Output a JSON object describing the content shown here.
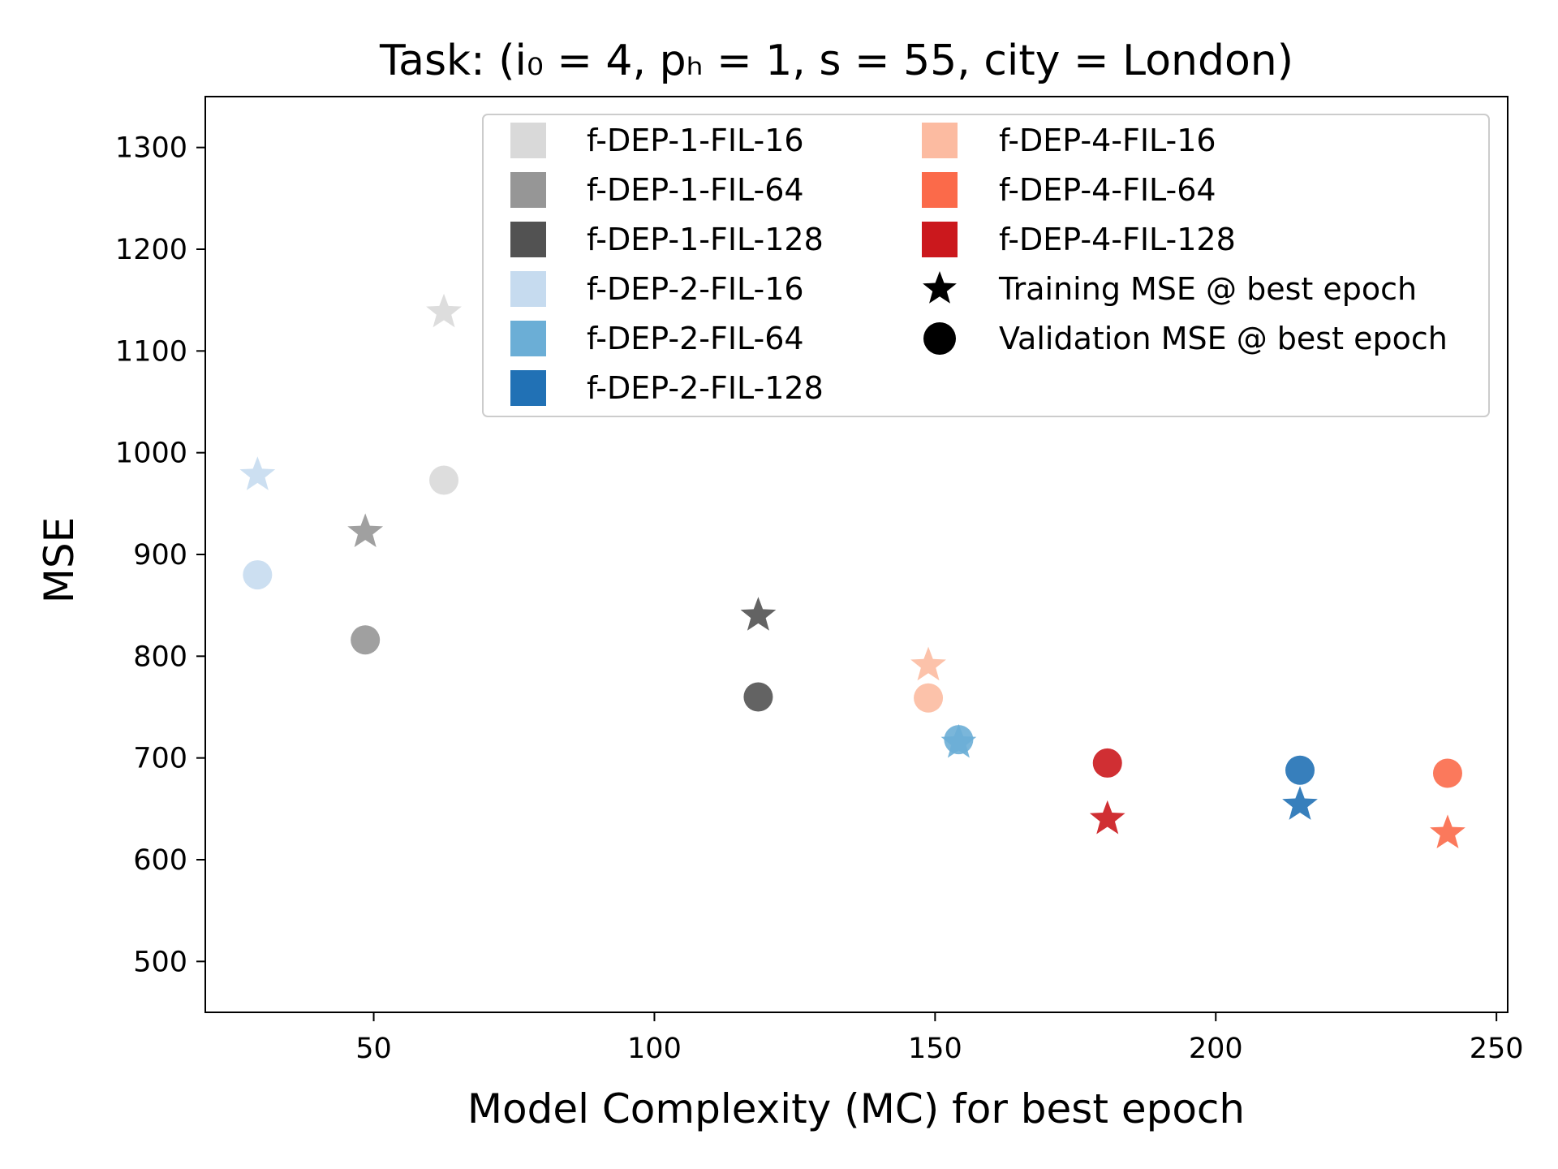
{
  "chart_data": {
    "type": "scatter",
    "title": "Task: (i₀ = 4, pₕ = 1, s = 55, city = London)",
    "xlabel": "Model Complexity (MC) for best epoch",
    "ylabel": "MSE",
    "xlim": [
      20,
      252
    ],
    "ylim": [
      450,
      1350
    ],
    "xticks": [
      50,
      100,
      150,
      200,
      250
    ],
    "yticks": [
      500,
      600,
      700,
      800,
      900,
      1000,
      1100,
      1200,
      1300
    ],
    "grid": false,
    "legend_position": "top-right",
    "marker_legend": [
      {
        "name": "Training MSE @ best epoch",
        "marker": "star"
      },
      {
        "name": "Validation MSE @ best epoch",
        "marker": "circle"
      }
    ],
    "series": [
      {
        "name": "f-DEP-1-FIL-16",
        "color": "#d9d9d9",
        "x": 62.5,
        "training_mse": 1138,
        "validation_mse": 973
      },
      {
        "name": "f-DEP-1-FIL-64",
        "color": "#969696",
        "x": 48.5,
        "training_mse": 922,
        "validation_mse": 816
      },
      {
        "name": "f-DEP-1-FIL-128",
        "color": "#525252",
        "x": 118.5,
        "training_mse": 840,
        "validation_mse": 760
      },
      {
        "name": "f-DEP-2-FIL-16",
        "color": "#c6dbef",
        "x": 29.3,
        "training_mse": 978,
        "validation_mse": 880
      },
      {
        "name": "f-DEP-2-FIL-64",
        "color": "#6baed6",
        "x": 154.2,
        "training_mse": 715,
        "validation_mse": 718
      },
      {
        "name": "f-DEP-2-FIL-128",
        "color": "#2171b5",
        "x": 215.0,
        "training_mse": 654,
        "validation_mse": 688
      },
      {
        "name": "f-DEP-4-FIL-16",
        "color": "#fcbba1",
        "x": 148.8,
        "training_mse": 791,
        "validation_mse": 759
      },
      {
        "name": "f-DEP-4-FIL-64",
        "color": "#fb6a4a",
        "x": 241.3,
        "training_mse": 626,
        "validation_mse": 685
      },
      {
        "name": "f-DEP-4-FIL-128",
        "color": "#cb181d",
        "x": 180.7,
        "training_mse": 640,
        "validation_mse": 695
      }
    ]
  }
}
